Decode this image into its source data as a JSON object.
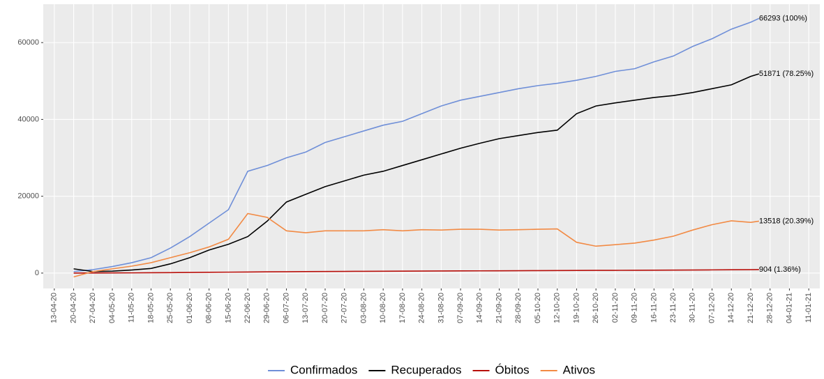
{
  "chart_data": {
    "type": "line",
    "x": [
      "2020-04-20",
      "2020-04-27",
      "2020-05-04",
      "2020-05-11",
      "2020-05-18",
      "2020-05-25",
      "2020-06-01",
      "2020-06-08",
      "2020-06-15",
      "2020-06-22",
      "2020-06-29",
      "2020-07-06",
      "2020-07-13",
      "2020-07-20",
      "2020-07-27",
      "2020-08-03",
      "2020-08-10",
      "2020-08-17",
      "2020-08-24",
      "2020-08-31",
      "2020-09-07",
      "2020-09-14",
      "2020-09-21",
      "2020-09-28",
      "2020-10-05",
      "2020-10-12",
      "2020-10-19",
      "2020-10-26",
      "2020-11-02",
      "2020-11-09",
      "2020-11-16",
      "2020-11-23",
      "2020-11-30",
      "2020-12-07",
      "2020-12-14",
      "2020-12-21",
      "2020-12-24"
    ],
    "series": [
      {
        "name": "Confirmados",
        "color": "#6f8fd8",
        "end_label": "66293 (100%)",
        "values": [
          400,
          900,
          1700,
          2700,
          4000,
          6500,
          9500,
          13000,
          16500,
          26500,
          28000,
          30000,
          31500,
          34000,
          35500,
          37000,
          38500,
          39500,
          41500,
          43500,
          45000,
          46000,
          47000,
          48000,
          48800,
          49400,
          50200,
          51200,
          52500,
          53200,
          55000,
          56500,
          59000,
          61000,
          63500,
          65300,
          66293
        ]
      },
      {
        "name": "Recuperados",
        "color": "#000000",
        "end_label": "51871 (78.25%)",
        "values": [
          1100,
          400,
          500,
          800,
          1200,
          2400,
          4000,
          6000,
          7500,
          9500,
          13500,
          18500,
          20500,
          22500,
          24000,
          25500,
          26500,
          28000,
          29500,
          31000,
          32500,
          33800,
          35000,
          35800,
          36600,
          37200,
          41500,
          43500,
          44300,
          45000,
          45700,
          46200,
          47000,
          48000,
          49000,
          51200,
          51871
        ]
      },
      {
        "name": "Óbitos",
        "color": "#b80f0a",
        "end_label": "904 (1.36%)",
        "values": [
          0,
          20,
          40,
          60,
          90,
          120,
          160,
          200,
          240,
          280,
          320,
          350,
          380,
          410,
          440,
          460,
          480,
          500,
          520,
          540,
          560,
          580,
          600,
          620,
          640,
          660,
          680,
          700,
          710,
          730,
          750,
          770,
          800,
          830,
          860,
          890,
          904
        ]
      },
      {
        "name": "Ativos",
        "color": "#f28a44",
        "end_label": "13518 (20.39%)",
        "values": [
          -1000,
          400,
          1100,
          1800,
          2700,
          4000,
          5300,
          6800,
          8800,
          15500,
          14500,
          11000,
          10500,
          11000,
          11000,
          11000,
          11300,
          11000,
          11300,
          11200,
          11400,
          11400,
          11200,
          11300,
          11400,
          11500,
          8000,
          7000,
          7400,
          7800,
          8600,
          9600,
          11200,
          12600,
          13600,
          13200,
          13518
        ]
      }
    ],
    "ylim": [
      -4000,
      70000
    ],
    "yticks": [
      0,
      20000,
      40000,
      60000
    ],
    "xlim": [
      "2020-04-09",
      "2021-01-15"
    ],
    "xticks": [
      {
        "value": "2020-04-13",
        "label": "13-04-20"
      },
      {
        "value": "2020-04-20",
        "label": "20-04-20"
      },
      {
        "value": "2020-04-27",
        "label": "27-04-20"
      },
      {
        "value": "2020-05-04",
        "label": "04-05-20"
      },
      {
        "value": "2020-05-11",
        "label": "11-05-20"
      },
      {
        "value": "2020-05-18",
        "label": "18-05-20"
      },
      {
        "value": "2020-05-25",
        "label": "25-05-20"
      },
      {
        "value": "2020-06-01",
        "label": "01-06-20"
      },
      {
        "value": "2020-06-08",
        "label": "08-06-20"
      },
      {
        "value": "2020-06-15",
        "label": "15-06-20"
      },
      {
        "value": "2020-06-22",
        "label": "22-06-20"
      },
      {
        "value": "2020-06-29",
        "label": "29-06-20"
      },
      {
        "value": "2020-07-06",
        "label": "06-07-20"
      },
      {
        "value": "2020-07-13",
        "label": "13-07-20"
      },
      {
        "value": "2020-07-20",
        "label": "20-07-20"
      },
      {
        "value": "2020-07-27",
        "label": "27-07-20"
      },
      {
        "value": "2020-08-03",
        "label": "03-08-20"
      },
      {
        "value": "2020-08-10",
        "label": "10-08-20"
      },
      {
        "value": "2020-08-17",
        "label": "17-08-20"
      },
      {
        "value": "2020-08-24",
        "label": "24-08-20"
      },
      {
        "value": "2020-08-31",
        "label": "31-08-20"
      },
      {
        "value": "2020-09-07",
        "label": "07-09-20"
      },
      {
        "value": "2020-09-14",
        "label": "14-09-20"
      },
      {
        "value": "2020-09-21",
        "label": "21-09-20"
      },
      {
        "value": "2020-09-28",
        "label": "28-09-20"
      },
      {
        "value": "2020-10-05",
        "label": "05-10-20"
      },
      {
        "value": "2020-10-12",
        "label": "12-10-20"
      },
      {
        "value": "2020-10-19",
        "label": "19-10-20"
      },
      {
        "value": "2020-10-26",
        "label": "26-10-20"
      },
      {
        "value": "2020-11-02",
        "label": "02-11-20"
      },
      {
        "value": "2020-11-09",
        "label": "09-11-20"
      },
      {
        "value": "2020-11-16",
        "label": "16-11-20"
      },
      {
        "value": "2020-11-23",
        "label": "23-11-20"
      },
      {
        "value": "2020-11-30",
        "label": "30-11-20"
      },
      {
        "value": "2020-12-07",
        "label": "07-12-20"
      },
      {
        "value": "2020-12-14",
        "label": "14-12-20"
      },
      {
        "value": "2020-12-21",
        "label": "21-12-20"
      },
      {
        "value": "2020-12-28",
        "label": "28-12-20"
      },
      {
        "value": "2021-01-04",
        "label": "04-01-21"
      },
      {
        "value": "2021-01-11",
        "label": "11-01-21"
      }
    ],
    "grid": true,
    "legend": "bottom"
  }
}
